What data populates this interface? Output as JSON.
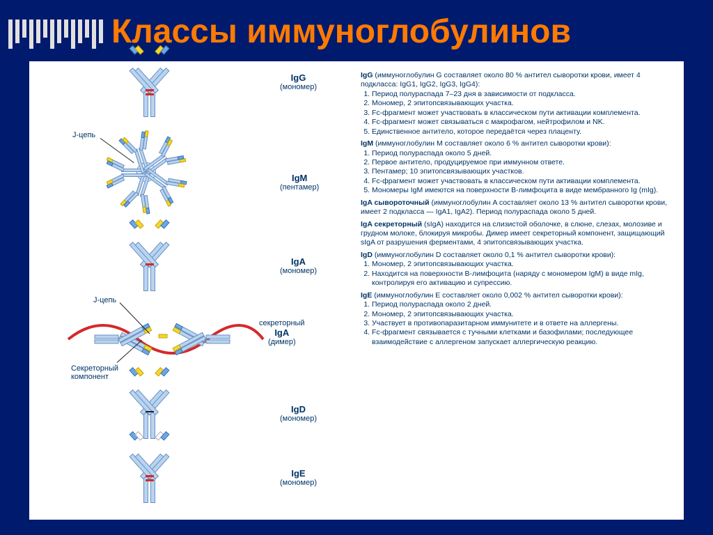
{
  "title": "Классы иммуноглобулинов",
  "background_color": "#001a6e",
  "title_color": "#ff7a00",
  "panel_bg": "#ffffff",
  "text_color": "#003366",
  "colors": {
    "heavy_chain": "#b8d4f0",
    "heavy_chain_border": "#6a8fc0",
    "light_yellow": "#f5d633",
    "light_blue": "#6aa8e8",
    "hinge_red": "#d42a2a",
    "secretory_red": "#d42a2a",
    "j_chain_yellow": "#f5d633"
  },
  "ig": {
    "IgG": {
      "name": "IgG",
      "sub": "(мономер)"
    },
    "IgM": {
      "name": "IgM",
      "sub": "(пентамер)"
    },
    "IgA": {
      "name": "IgA",
      "sub": "(мономер)"
    },
    "sIgA": {
      "name": "секреторный",
      "sub_name": "IgA",
      "sub": "(димер)"
    },
    "IgD": {
      "name": "IgD",
      "sub": "(мономер)"
    },
    "IgE": {
      "name": "IgE",
      "sub": "(мономер)"
    }
  },
  "annotations": {
    "j_chain": "J-цепь",
    "secretory_component": "Секреторный компонент"
  },
  "decor_bar_heights": [
    42,
    34,
    26,
    42,
    34,
    26,
    42,
    34,
    26,
    42,
    34,
    26,
    42,
    34
  ],
  "classes": [
    {
      "key": "IgG",
      "intro": "(иммуноглобулин G составляет около 80 % антител сыворотки крови, имеет 4 подкласса: IgG1, IgG2, IgG3, IgG4):",
      "points": [
        "Период полураспада 7–23 дня в зависимости от подкласса.",
        "Мономер, 2 эпитопсвязывающих участка.",
        "Fc-фрагмент может участвовать в классическом пути активации комплемента.",
        "Fc-фрагмент может связываться с макрофагом, нейтрофилом и NK.",
        "Единственное антитело, которое передаётся через плаценту."
      ]
    },
    {
      "key": "IgM",
      "intro": "(иммуноглобулин M составляет около 6 % антител сыворотки крови):",
      "points": [
        "Период полураспада около 5 дней.",
        "Первое антитело, продуцируемое при иммунном ответе.",
        "Пентамер; 10 эпитопсвязывающих участков.",
        "Fc-фрагмент может участвовать в классическом пути активации комплемента.",
        "Мономеры IgM имеются на поверхности B-лимфоцита в виде мембранного Ig (mIg)."
      ]
    },
    {
      "key": "IgA",
      "intro_plain": "IgA сывороточный (иммуноглобулин A составляет около 13 % антител сыворотки крови, имеет 2 подкласса — IgA1, IgA2). Период полураспада около 5 дней."
    },
    {
      "key": "sIgA",
      "intro_plain": "IgA секреторный (sIgA) находится на слизистой оболочке, в слюне, слезах, молозиве и грудном молоке, блокируя микробы. Димер имеет секреторный компонент, защищающий sIgA от разрушения ферментами, 4 эпитопсвязывающих участка."
    },
    {
      "key": "IgD",
      "intro": "(иммуноглобулин D составляет около 0,1 % антител сыворотки крови):",
      "points": [
        "Мономер, 2 эпитопсвязывающих участка.",
        "Находится на поверхности B-лимфоцита (наряду с мономером IgM) в виде mIg, контролируя его активацию и супрессию."
      ]
    },
    {
      "key": "IgE",
      "intro": "(иммуноглобулин E составляет около 0,002 % антител сыворотки крови):",
      "points": [
        "Период полураспада около 2 дней.",
        "Мономер, 2 эпитопсвязывающих участка.",
        "Участвует в противопаразитарном иммунитете и в ответе на аллергены.",
        "Fc-фрагмент связывается с тучными клетками и базофилами; последующее взаимодействие с аллергеном запускает аллергическую реакцию."
      ]
    }
  ]
}
